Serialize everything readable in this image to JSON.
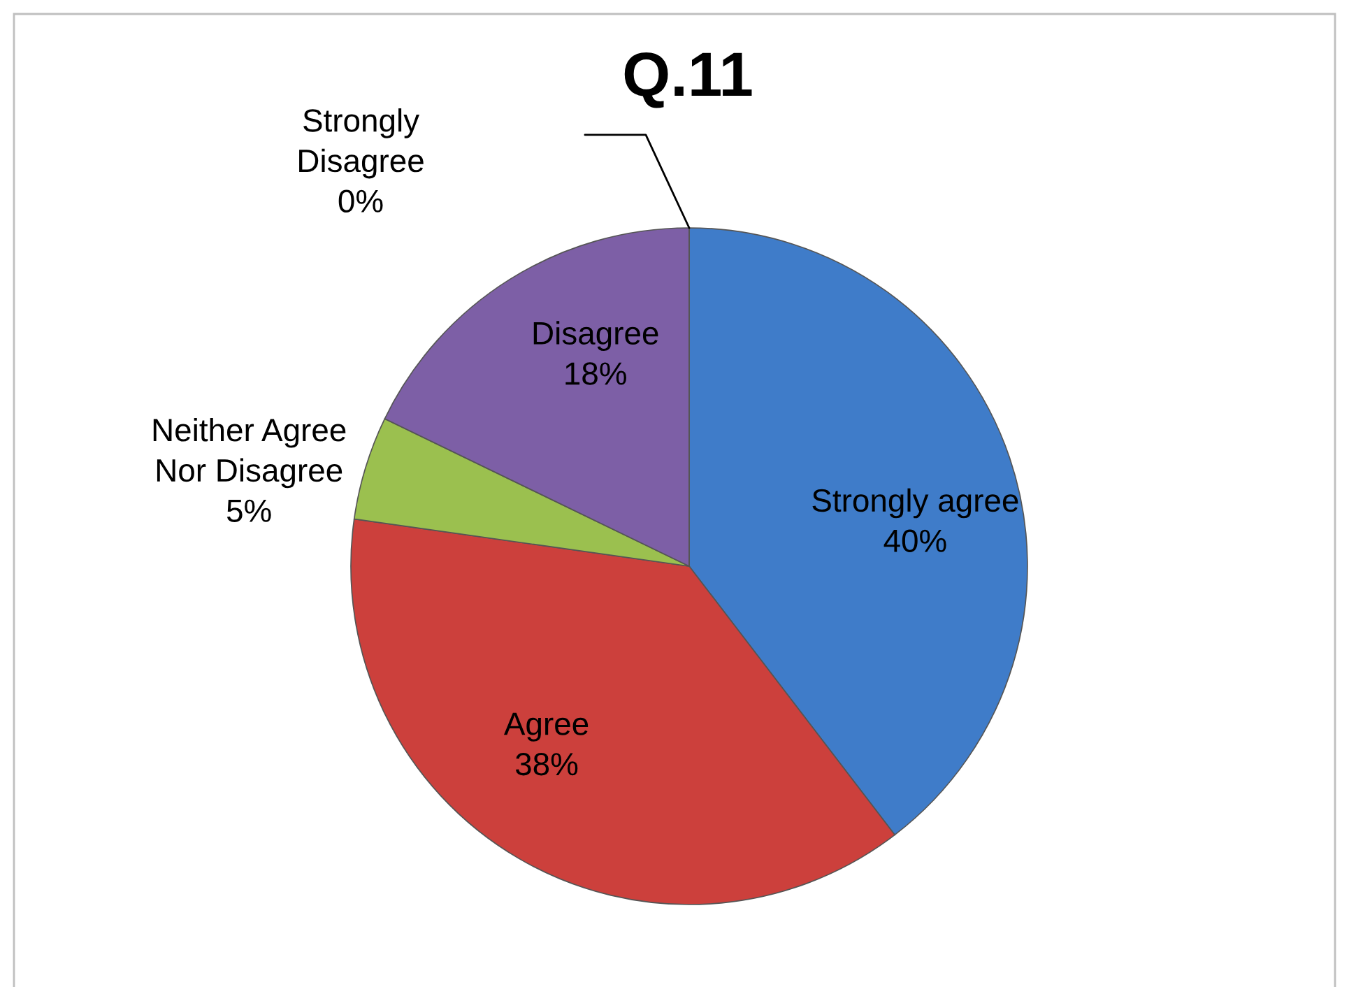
{
  "chart_data": {
    "type": "pie",
    "title": "Q.11",
    "categories": [
      "Strongly agree",
      "Agree",
      "Neither Agree\nNor Disagree",
      "Disagree",
      "Strongly\nDisagree"
    ],
    "values": [
      40,
      38,
      5,
      18,
      0
    ],
    "colors": [
      "#3f7cc9",
      "#cc403c",
      "#9bc04f",
      "#7d5fa6",
      "#4bacc6"
    ],
    "value_labels": [
      "40%",
      "38%",
      "5%",
      "18%",
      "0%"
    ]
  }
}
